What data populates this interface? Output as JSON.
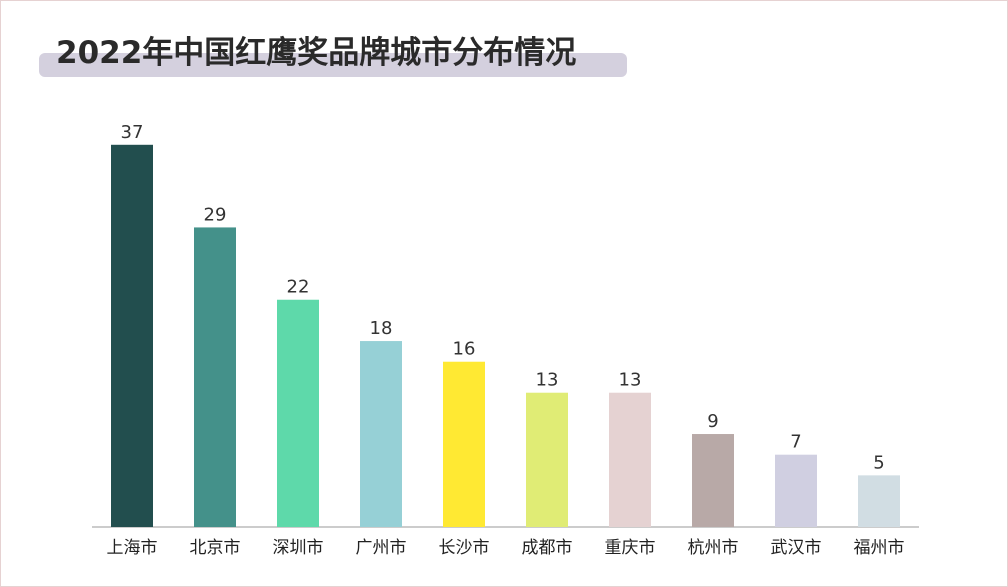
{
  "title": "2022年中国红鹰奖品牌城市分布情况",
  "chart_data": {
    "type": "bar",
    "title": "2022年中国红鹰奖品牌城市分布情况",
    "categories": [
      "上海市",
      "北京市",
      "深圳市",
      "广州市",
      "长沙市",
      "成都市",
      "重庆市",
      "杭州市",
      "武汉市",
      "福州市"
    ],
    "values": [
      37,
      29,
      22,
      18,
      16,
      13,
      13,
      9,
      7,
      5
    ],
    "colors": [
      "#224e4e",
      "#44918a",
      "#5ed9aa",
      "#96d0d6",
      "#ffe933",
      "#e0ec75",
      "#e5d2d2",
      "#b8a9a7",
      "#d0cfe1",
      "#d1dde3"
    ],
    "xlabel": "",
    "ylabel": "",
    "grid": false,
    "data_labels": true
  }
}
